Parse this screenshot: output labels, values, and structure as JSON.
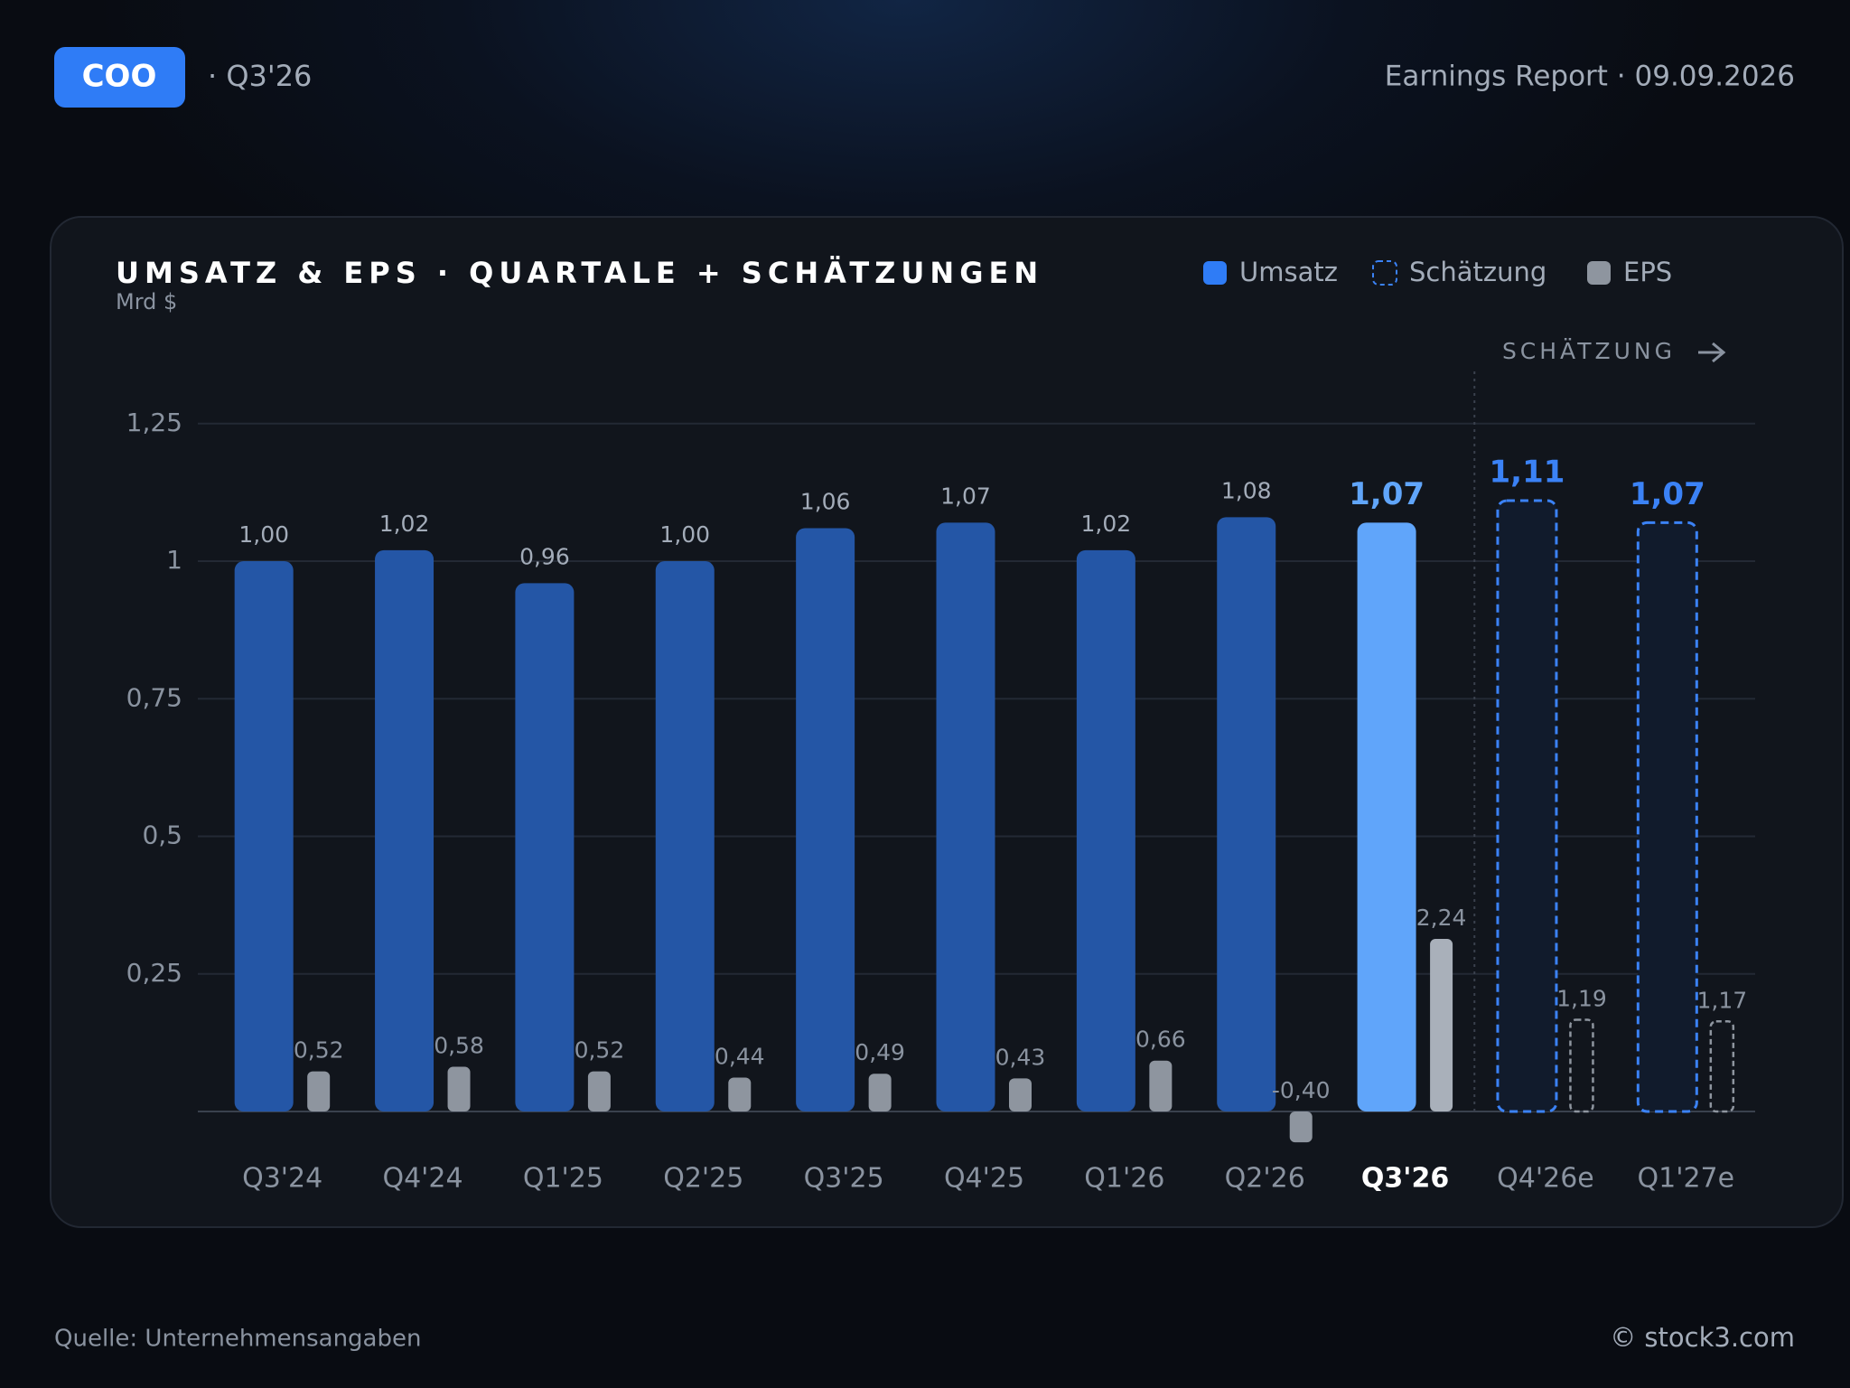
{
  "header": {
    "ticker": "COO",
    "quarter": "· Q3'26",
    "report": "Earnings Report · 09.09.2026"
  },
  "chart_data": {
    "type": "bar",
    "title": "UMSATZ & EPS · QUARTALE + SCHÄTZUNGEN",
    "subtitle": "Mrd $",
    "categories": [
      "Q3'24",
      "Q4'24",
      "Q1'25",
      "Q2'25",
      "Q3'25",
      "Q4'25",
      "Q1'26",
      "Q2'26",
      "Q3'26",
      "Q4'26e",
      "Q1'27e"
    ],
    "highlight_category": 8,
    "series": [
      {
        "name": "Umsatz",
        "color": "#2456a6",
        "values": [
          1.0,
          1.02,
          0.96,
          1.0,
          1.06,
          1.07,
          1.02,
          1.08,
          1.07,
          null,
          null
        ],
        "value_labels": [
          "1,00",
          "1,02",
          "0,96",
          "1,00",
          "1,06",
          "1,07",
          "1,02",
          "1,08",
          "1,07",
          null,
          null
        ]
      },
      {
        "name": "Schätzung",
        "color": "#3b82f6",
        "values": [
          null,
          null,
          null,
          null,
          null,
          null,
          null,
          null,
          null,
          1.11,
          1.07
        ],
        "value_labels": [
          null,
          null,
          null,
          null,
          null,
          null,
          null,
          null,
          null,
          "1,11",
          "1,07"
        ]
      },
      {
        "name": "EPS",
        "color": "#8e959f",
        "values": [
          0.52,
          0.58,
          0.52,
          0.44,
          0.49,
          0.43,
          0.66,
          -0.4,
          2.24,
          1.19,
          1.17
        ],
        "value_labels": [
          "0,52",
          "0,58",
          "0,52",
          "0,44",
          "0,49",
          "0,43",
          "0,66",
          "-0,40",
          "2,24",
          "1,19",
          "1,17"
        ]
      }
    ],
    "ylim": [
      0,
      1.34
    ],
    "yticks": [
      {
        "value": 1.25,
        "label": "1,25"
      },
      1,
      {
        "value": 0.75,
        "label": "0,75"
      },
      {
        "value": 0.5,
        "label": "0,5"
      },
      {
        "value": 0.25,
        "label": "0,25"
      }
    ],
    "grid": true,
    "annotation": "SCHÄTZUNG"
  },
  "footer": {
    "source": "Quelle: Unternehmensangaben",
    "credit": "© stock3.com"
  }
}
